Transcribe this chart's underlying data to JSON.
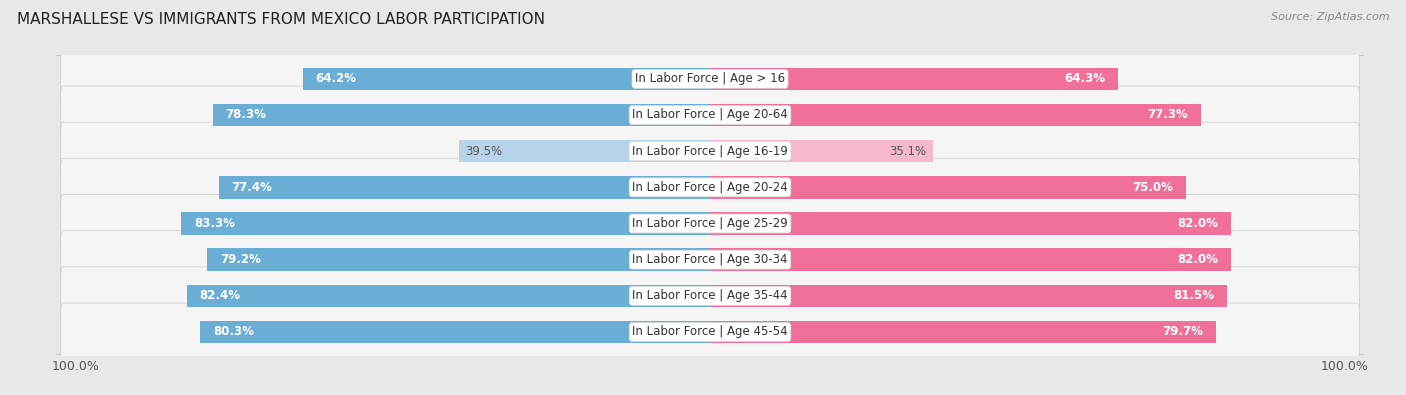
{
  "title": "MARSHALLESE VS IMMIGRANTS FROM MEXICO LABOR PARTICIPATION",
  "source": "Source: ZipAtlas.com",
  "categories": [
    "In Labor Force | Age > 16",
    "In Labor Force | Age 20-64",
    "In Labor Force | Age 16-19",
    "In Labor Force | Age 20-24",
    "In Labor Force | Age 25-29",
    "In Labor Force | Age 30-34",
    "In Labor Force | Age 35-44",
    "In Labor Force | Age 45-54"
  ],
  "marshallese": [
    64.2,
    78.3,
    39.5,
    77.4,
    83.3,
    79.2,
    82.4,
    80.3
  ],
  "mexico": [
    64.3,
    77.3,
    35.1,
    75.0,
    82.0,
    82.0,
    81.5,
    79.7
  ],
  "marshallese_color": "#6aaed6",
  "marshallese_color_light": "#b8d4ea",
  "mexico_color": "#f0709a",
  "mexico_color_light": "#f5b8cc",
  "max_val": 100.0,
  "background_color": "#e8e8e8",
  "row_bg_color": "#f5f5f5",
  "title_fontsize": 11,
  "label_fontsize": 8.5,
  "value_fontsize": 8.5,
  "tick_fontsize": 9,
  "legend_fontsize": 9.5
}
